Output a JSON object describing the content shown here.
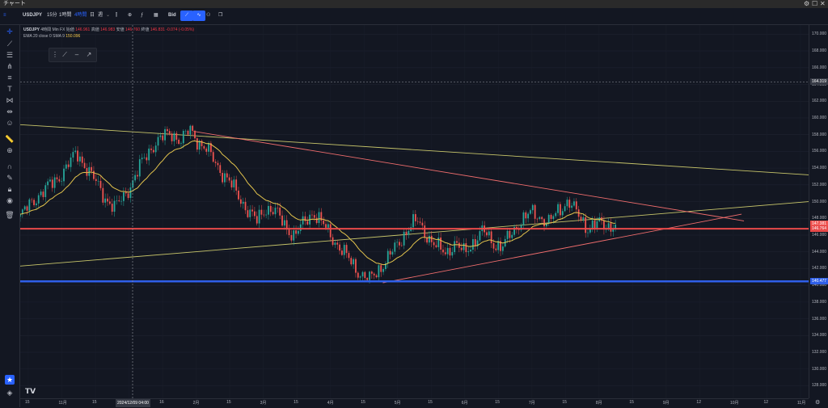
{
  "window": {
    "title": "チャート",
    "controls": [
      "⚙",
      "☐",
      "✕"
    ]
  },
  "toolbar": {
    "symbol": "USDJPY",
    "intervals": [
      "15分",
      "1時間",
      "4時間",
      "日",
      "週"
    ],
    "active_interval": "4時間",
    "price_source": "Bid"
  },
  "legend": {
    "symbol": "USDJPY",
    "interval": "4時間",
    "source": "Min FX",
    "ohlc_labels": [
      "始値",
      "高値",
      "安値",
      "終値"
    ],
    "ohlc_values": [
      "146.961",
      "146.983",
      "146.760",
      "146.831",
      "-0.074 (-0.05%)"
    ],
    "indicator": "EMA 20 close 0 SMA 9",
    "indicator_value": "150.096"
  },
  "colors": {
    "background": "#131722",
    "red_line": "#e84a4a",
    "blue_line": "#2f5fe8",
    "trend_red": "#f06d6d",
    "trend_yellow": "#c7c56a",
    "candle_up": "#26a69a",
    "candle_down": "#ef5350",
    "ema": "#e3c44d"
  },
  "y_axis": {
    "ticks": [
      "170.000",
      "168.000",
      "166.000",
      "164.000",
      "162.000",
      "160.000",
      "158.000",
      "156.000",
      "154.000",
      "152.000",
      "150.000",
      "148.000",
      "146.000",
      "144.000",
      "142.000",
      "140.000",
      "138.000",
      "136.000",
      "134.000",
      "132.000",
      "130.000",
      "128.000"
    ],
    "crosshair_price": "164.319",
    "current_price": "147.381",
    "red_level": "146.764",
    "blue_level": "140.477"
  },
  "x_axis": {
    "labels": [
      "15",
      "11月",
      "15",
      "2025",
      "16",
      "2月",
      "15",
      "3月",
      "15",
      "4月",
      "15",
      "5月",
      "15",
      "6月",
      "15",
      "7月",
      "15",
      "8月",
      "15",
      "9月",
      "12",
      "10月",
      "12",
      "11月"
    ],
    "crosshair_date": "2024/12/09 04:00"
  },
  "levels": {
    "red": 146.764,
    "blue": 140.477,
    "crosshair": 164.319
  },
  "price_series": [
    148.2,
    149.6,
    150.9,
    151.8,
    152.8,
    154.3,
    155.8,
    154.1,
    152.3,
    150.5,
    149.2,
    150.7,
    152.6,
    154.9,
    156.7,
    157.6,
    158.3,
    157.2,
    158.6,
    157.0,
    155.8,
    154.1,
    152.5,
    150.9,
    149.1,
    147.6,
    149.3,
    148.8,
    147.2,
    145.9,
    147.4,
    148.8,
    147.3,
    145.8,
    144.2,
    142.8,
    141.4,
    140.6,
    142.0,
    143.4,
    144.9,
    146.8,
    147.7,
    146.1,
    144.6,
    143.9,
    145.0,
    143.8,
    145.3,
    146.5,
    145.1,
    144.6,
    146.1,
    147.8,
    148.6,
    148.2,
    147.5,
    148.9,
    150.2,
    148.4,
    146.9,
    147.4,
    147.0,
    147.381
  ],
  "trendlines": [
    {
      "color": "yellow",
      "from": [
        0.0,
        159.2
      ],
      "to": [
        1.0,
        153.2
      ]
    },
    {
      "color": "yellow",
      "from": [
        0.0,
        142.3
      ],
      "to": [
        1.0,
        150.0
      ]
    },
    {
      "color": "red",
      "from": [
        0.22,
        158.4
      ],
      "to": [
        0.918,
        147.7
      ]
    },
    {
      "color": "red",
      "from": [
        0.46,
        140.3
      ],
      "to": [
        0.915,
        148.5
      ]
    }
  ]
}
